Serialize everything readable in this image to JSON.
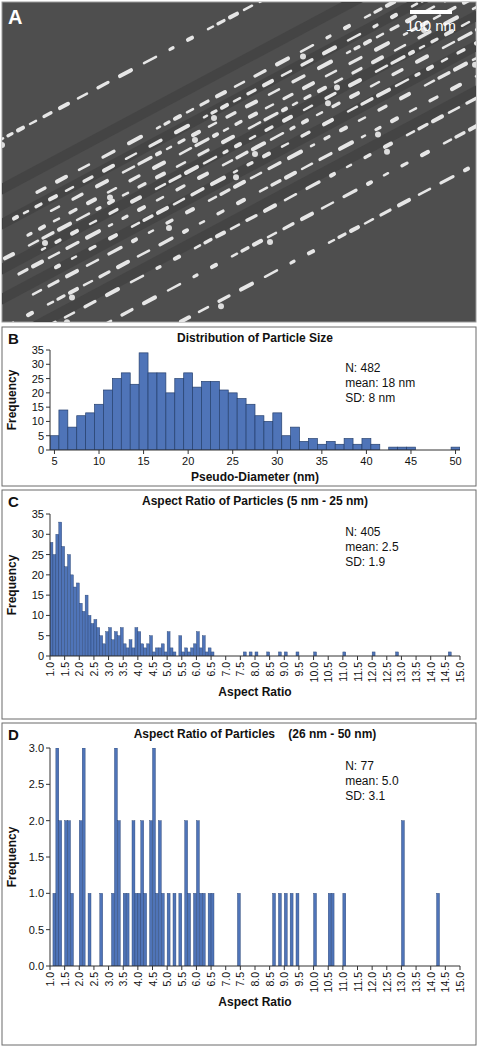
{
  "image": {
    "label": "A",
    "scale_bar": "100 nm"
  },
  "chart_data": [
    {
      "type": "histogram",
      "panel": "B",
      "title": "Distribution of Particle Size",
      "x_label": "Pseudo-Diameter (nm)",
      "y_label": "Frequency",
      "bins": [
        4.5,
        5.5,
        6.5,
        7.5,
        8.5,
        9.5,
        10.5,
        11.5,
        12.5,
        13.5,
        14.5,
        15.5,
        16.5,
        17.5,
        18.5,
        19.5,
        20.5,
        21.5,
        22.5,
        23.5,
        24.5,
        25.5,
        26.5,
        27.5,
        28.5,
        29.5,
        30.5,
        31.5,
        32.5,
        33.5,
        34.5,
        35.5,
        36.5,
        37.5,
        38.5,
        39.5,
        40.5,
        41.5,
        42.5,
        43.5,
        44.5,
        45.5,
        46.5,
        47.5,
        48.5,
        49.5,
        50.5
      ],
      "values": [
        5,
        14,
        8,
        12,
        13,
        16,
        21,
        25,
        27,
        23,
        34,
        27,
        27,
        20,
        25,
        27,
        22,
        24,
        24,
        21,
        20,
        18,
        16,
        12,
        10,
        13,
        5,
        8,
        3,
        4,
        2,
        3,
        2,
        4,
        2,
        4,
        2,
        0,
        1,
        1,
        1,
        0,
        0,
        0,
        0,
        1
      ],
      "color": "#4f74b8",
      "xlim": [
        4.5,
        50.5
      ],
      "xticks": [
        5,
        10,
        15,
        20,
        25,
        30,
        35,
        40,
        45,
        50
      ],
      "ylim": [
        0,
        35
      ],
      "yticks": [
        0,
        5,
        10,
        15,
        20,
        25,
        30,
        35
      ],
      "annotations": [
        "N: 482",
        "mean: 18 nm",
        "SD: 8 nm"
      ]
    },
    {
      "type": "histogram",
      "panel": "C",
      "title": "Aspect Ratio of Particles (5 nm - 25 nm)",
      "x_label": "Aspect Ratio",
      "y_label": "Frequency",
      "bins": [
        1,
        1.1,
        1.2,
        1.3,
        1.4,
        1.5,
        1.6,
        1.7,
        1.8,
        1.9,
        2,
        2.1,
        2.2,
        2.3,
        2.4,
        2.5,
        2.6,
        2.7,
        2.8,
        2.9,
        3,
        3.1,
        3.2,
        3.3,
        3.4,
        3.5,
        3.6,
        3.7,
        3.8,
        3.9,
        4,
        4.1,
        4.2,
        4.3,
        4.4,
        4.5,
        4.6,
        4.7,
        4.8,
        4.9,
        5,
        5.1,
        5.2,
        5.3,
        5.4,
        5.5,
        5.6,
        5.7,
        5.8,
        5.9,
        6,
        6.1,
        6.2,
        6.3,
        6.4,
        6.5,
        6.6,
        6.7,
        6.8,
        6.9,
        7,
        7.1,
        7.2,
        7.3,
        7.4,
        7.5,
        7.6,
        7.7,
        7.8,
        7.9,
        8,
        8.1,
        8.2,
        8.3,
        8.4,
        8.5,
        8.6,
        8.7,
        8.8,
        8.9,
        9,
        9.1,
        9.2,
        9.3,
        9.4,
        9.5,
        9.6,
        9.7,
        9.8,
        9.9,
        10,
        10.1,
        10.2,
        10.3,
        10.4,
        10.5,
        10.6,
        10.7,
        10.8,
        10.9,
        11,
        11.1,
        11.2,
        11.3,
        11.4,
        11.5,
        11.6,
        11.7,
        11.8,
        11.9,
        12,
        12.1,
        12.2,
        12.3,
        12.4,
        12.5,
        12.6,
        12.7,
        12.8,
        12.9,
        13,
        13.1,
        13.2,
        13.3,
        13.4,
        13.5,
        13.6,
        13.7,
        13.8,
        13.9,
        14,
        14.1,
        14.2,
        14.3,
        14.4,
        14.5,
        14.6,
        14.7,
        14.8,
        14.9,
        15
      ],
      "values": [
        28,
        25,
        30,
        33,
        27,
        22,
        25,
        20,
        17,
        18,
        13,
        11,
        15,
        10,
        8,
        9,
        7,
        5,
        3,
        6,
        7,
        4,
        6,
        5,
        7,
        3,
        2,
        4,
        2,
        7,
        6,
        3,
        2,
        3,
        5,
        1,
        2,
        2,
        3,
        1,
        6,
        2,
        1,
        0,
        5,
        1,
        2,
        1,
        2,
        3,
        6,
        2,
        5,
        1,
        2,
        1,
        0,
        0,
        0,
        0,
        0,
        0,
        0,
        0,
        0,
        0,
        1,
        0,
        1,
        0,
        1,
        0,
        0,
        0,
        1,
        0,
        0,
        0,
        1,
        0,
        1,
        0,
        0,
        0,
        1,
        0,
        0,
        0,
        0,
        0,
        1,
        0,
        0,
        0,
        0,
        0,
        0,
        0,
        0,
        0,
        1,
        0,
        0,
        0,
        0,
        0,
        0,
        0,
        0,
        0,
        1,
        0,
        0,
        0,
        0,
        0,
        0,
        0,
        1,
        0,
        0,
        0,
        0,
        0,
        0,
        0,
        0,
        0,
        0,
        0,
        0,
        0,
        0,
        0,
        0,
        0,
        1,
        0,
        0,
        0
      ],
      "color": "#4f74b8",
      "xlim": [
        1,
        15
      ],
      "xticks": [
        {
          "value": 1,
          "label": "1.0"
        },
        {
          "value": 1.5,
          "label": "1.5"
        },
        {
          "value": 2,
          "label": "2.0"
        },
        {
          "value": 2.5,
          "label": "2.5"
        },
        {
          "value": 3,
          "label": "3.0"
        },
        {
          "value": 3.5,
          "label": "3.5"
        },
        {
          "value": 4,
          "label": "4.0"
        },
        {
          "value": 4.5,
          "label": "4.5"
        },
        {
          "value": 5,
          "label": "5.0"
        },
        {
          "value": 5.5,
          "label": "5.5"
        },
        {
          "value": 6,
          "label": "6.0"
        },
        {
          "value": 6.5,
          "label": "6.5"
        },
        {
          "value": 7,
          "label": "7.0"
        },
        {
          "value": 7.5,
          "label": "7.5"
        },
        {
          "value": 8,
          "label": "8.0"
        },
        {
          "value": 8.5,
          "label": "8.5"
        },
        {
          "value": 9,
          "label": "9.0"
        },
        {
          "value": 9.5,
          "label": "9.5"
        },
        {
          "value": 10,
          "label": "10.0"
        },
        {
          "value": 10.5,
          "label": "10.5"
        },
        {
          "value": 11,
          "label": "11.0"
        },
        {
          "value": 11.5,
          "label": "11.5"
        },
        {
          "value": 12,
          "label": "12.0"
        },
        {
          "value": 12.5,
          "label": "12.5"
        },
        {
          "value": 13,
          "label": "13.0"
        },
        {
          "value": 13.5,
          "label": "13.5"
        },
        {
          "value": 14,
          "label": "14.0"
        },
        {
          "value": 14.5,
          "label": "14.5"
        },
        {
          "value": 15,
          "label": "15.0"
        }
      ],
      "ylim": [
        0,
        35
      ],
      "yticks": [
        0,
        5,
        10,
        15,
        20,
        25,
        30,
        35
      ],
      "annotations": [
        "N: 405",
        "mean: 2.5",
        "SD: 1.9"
      ]
    },
    {
      "type": "histogram",
      "panel": "D",
      "title": "Aspect Ratio of Particles    (26 nm - 50 nm)",
      "x_label": "Aspect Ratio",
      "y_label": "Frequency",
      "bins": [
        1,
        1.1,
        1.2,
        1.3,
        1.4,
        1.5,
        1.6,
        1.7,
        1.8,
        1.9,
        2,
        2.1,
        2.2,
        2.3,
        2.4,
        2.5,
        2.6,
        2.7,
        2.8,
        2.9,
        3,
        3.1,
        3.2,
        3.3,
        3.4,
        3.5,
        3.6,
        3.7,
        3.8,
        3.9,
        4,
        4.1,
        4.2,
        4.3,
        4.4,
        4.5,
        4.6,
        4.7,
        4.8,
        4.9,
        5,
        5.1,
        5.2,
        5.3,
        5.4,
        5.5,
        5.6,
        5.7,
        5.8,
        5.9,
        6,
        6.1,
        6.2,
        6.3,
        6.4,
        6.5,
        6.6,
        6.7,
        6.8,
        6.9,
        7,
        7.1,
        7.2,
        7.3,
        7.4,
        7.5,
        7.6,
        7.7,
        7.8,
        7.9,
        8,
        8.1,
        8.2,
        8.3,
        8.4,
        8.5,
        8.6,
        8.7,
        8.8,
        8.9,
        9,
        9.1,
        9.2,
        9.3,
        9.4,
        9.5,
        9.6,
        9.7,
        9.8,
        9.9,
        10,
        10.1,
        10.2,
        10.3,
        10.4,
        10.5,
        10.6,
        10.7,
        10.8,
        10.9,
        11,
        11.1,
        11.2,
        11.3,
        11.4,
        11.5,
        11.6,
        11.7,
        11.8,
        11.9,
        12,
        12.1,
        12.2,
        12.3,
        12.4,
        12.5,
        12.6,
        12.7,
        12.8,
        12.9,
        13,
        13.1,
        13.2,
        13.3,
        13.4,
        13.5,
        13.6,
        13.7,
        13.8,
        13.9,
        14,
        14.1,
        14.2,
        14.3,
        14.4,
        14.5,
        14.6,
        14.7,
        14.8,
        14.9,
        15
      ],
      "values": [
        0,
        1,
        3,
        2,
        0,
        2,
        2,
        1,
        0,
        0,
        2,
        3,
        0,
        1,
        0,
        0,
        0,
        1,
        0,
        0,
        0,
        1,
        3,
        2,
        0,
        1,
        1,
        0,
        2,
        1,
        1,
        2,
        1,
        0,
        2,
        3,
        1,
        2,
        1,
        0,
        1,
        0,
        1,
        0,
        1,
        0,
        2,
        1,
        0,
        1,
        2,
        1,
        1,
        0,
        1,
        1,
        0,
        0,
        0,
        0,
        0,
        0,
        0,
        0,
        1,
        0,
        0,
        0,
        0,
        0,
        0,
        0,
        0,
        0,
        0,
        0,
        1,
        0,
        1,
        0,
        1,
        0,
        1,
        0,
        1,
        0,
        0,
        0,
        0,
        0,
        1,
        0,
        0,
        0,
        0,
        1,
        1,
        0,
        0,
        0,
        1,
        0,
        0,
        0,
        0,
        0,
        0,
        0,
        0,
        0,
        0,
        0,
        0,
        0,
        0,
        0,
        0,
        0,
        0,
        0,
        2,
        0,
        0,
        0,
        0,
        0,
        0,
        0,
        0,
        0,
        0,
        0,
        1,
        0,
        0,
        0,
        0,
        0,
        0,
        0
      ],
      "color": "#4f74b8",
      "xlim": [
        1,
        15
      ],
      "xticks": [
        {
          "value": 1,
          "label": "1.0"
        },
        {
          "value": 1.5,
          "label": "1.5"
        },
        {
          "value": 2,
          "label": "2.0"
        },
        {
          "value": 2.5,
          "label": "2.5"
        },
        {
          "value": 3,
          "label": "3.0"
        },
        {
          "value": 3.5,
          "label": "3.5"
        },
        {
          "value": 4,
          "label": "4.0"
        },
        {
          "value": 4.5,
          "label": "4.5"
        },
        {
          "value": 5,
          "label": "5.0"
        },
        {
          "value": 5.5,
          "label": "5.5"
        },
        {
          "value": 6,
          "label": "6.0"
        },
        {
          "value": 6.5,
          "label": "6.5"
        },
        {
          "value": 7,
          "label": "7.0"
        },
        {
          "value": 7.5,
          "label": "7.5"
        },
        {
          "value": 8,
          "label": "8.0"
        },
        {
          "value": 8.5,
          "label": "8.5"
        },
        {
          "value": 9,
          "label": "9.0"
        },
        {
          "value": 9.5,
          "label": "9.5"
        },
        {
          "value": 10,
          "label": "10.0"
        },
        {
          "value": 10.5,
          "label": "10.5"
        },
        {
          "value": 11,
          "label": "11.0"
        },
        {
          "value": 11.5,
          "label": "11.5"
        },
        {
          "value": 12,
          "label": "12.0"
        },
        {
          "value": 12.5,
          "label": "12.5"
        },
        {
          "value": 13,
          "label": "13.0"
        },
        {
          "value": 13.5,
          "label": "13.5"
        },
        {
          "value": 14,
          "label": "14.0"
        },
        {
          "value": 14.5,
          "label": "14.5"
        },
        {
          "value": 15,
          "label": "15.0"
        }
      ],
      "ylim": [
        0,
        3
      ],
      "yticks": [
        {
          "value": 0,
          "label": "0.0"
        },
        {
          "value": 0.5,
          "label": "0.5"
        },
        {
          "value": 1,
          "label": "1.0"
        },
        {
          "value": 1.5,
          "label": "1.5"
        },
        {
          "value": 2,
          "label": "2.0"
        },
        {
          "value": 2.5,
          "label": "2.5"
        },
        {
          "value": 3,
          "label": "3.0"
        }
      ],
      "annotations": [
        "N: 77",
        "mean: 5.0",
        "SD: 3.1"
      ]
    }
  ]
}
